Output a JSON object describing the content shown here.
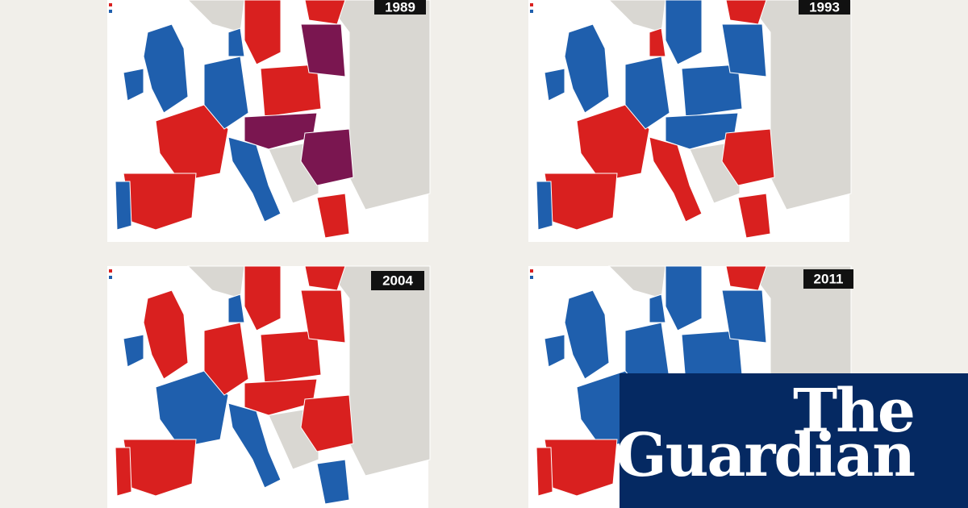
{
  "panels": [
    {
      "year": "1989"
    },
    {
      "year": "1993"
    },
    {
      "year": "2004"
    },
    {
      "year": "2011"
    }
  ],
  "logo": {
    "line1": "The",
    "line2": "Guardian"
  }
}
